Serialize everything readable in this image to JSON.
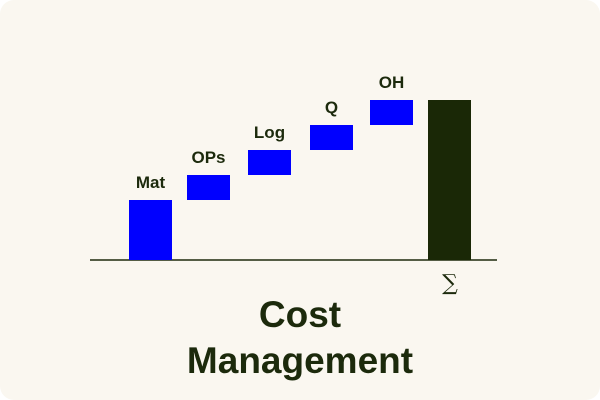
{
  "chart_data": {
    "type": "waterfall",
    "title": "Cost Management",
    "categories": [
      "Mat",
      "OPs",
      "Log",
      "Q",
      "OH"
    ],
    "values": [
      12,
      5,
      5,
      5,
      5
    ],
    "color": "#0000ff",
    "total_label": "∑",
    "total_color": "#1a2806"
  }
}
